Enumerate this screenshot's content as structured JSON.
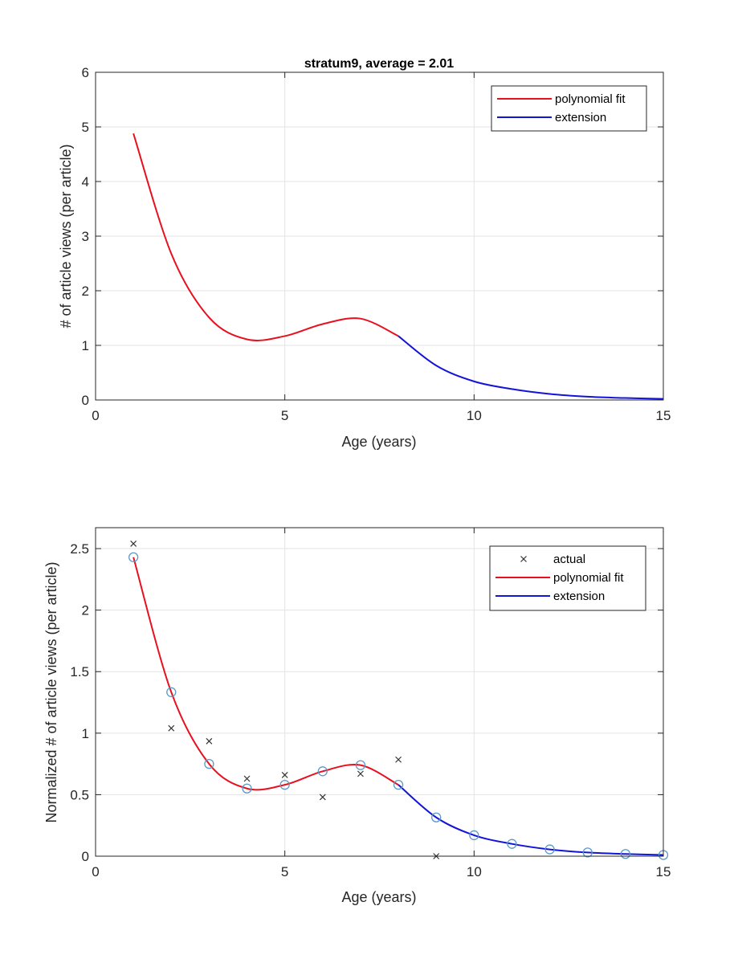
{
  "chart_data": [
    {
      "type": "line",
      "title": "stratum9,  average = 2.01",
      "xlabel": "Age (years)",
      "ylabel": "#  of article views (per article)",
      "xlim": [
        0,
        15
      ],
      "ylim": [
        0,
        6
      ],
      "xticks": [
        "0",
        "5",
        "10",
        "15"
      ],
      "xtick_values": [
        0,
        5,
        10,
        15
      ],
      "yticks": [
        "0",
        "1",
        "2",
        "3",
        "4",
        "5",
        "6"
      ],
      "ytick_values": [
        0,
        1,
        2,
        3,
        4,
        5,
        6
      ],
      "grid": true,
      "legend_position": "top-right",
      "legend": [
        "polynomial fit",
        "extension"
      ],
      "series": [
        {
          "name": "polynomial fit",
          "color": "#e8101e",
          "x": [
            1,
            2,
            3,
            4,
            5,
            6,
            7,
            8
          ],
          "y": [
            4.88,
            2.68,
            1.51,
            1.11,
            1.17,
            1.39,
            1.49,
            1.17
          ]
        },
        {
          "name": "extension",
          "color": "#1414d8",
          "x": [
            8,
            9,
            10,
            11,
            12,
            13,
            14,
            15
          ],
          "y": [
            1.17,
            0.63,
            0.34,
            0.2,
            0.11,
            0.06,
            0.036,
            0.02
          ]
        }
      ]
    },
    {
      "type": "line",
      "title": "",
      "xlabel": "Age (years)",
      "ylabel": "Normalized  #  of article views (per article)",
      "xlim": [
        0,
        15
      ],
      "ylim": [
        0,
        2.67
      ],
      "xticks": [
        "0",
        "5",
        "10",
        "15"
      ],
      "xtick_values": [
        0,
        5,
        10,
        15
      ],
      "yticks": [
        "0",
        "0.5",
        "1",
        "1.5",
        "2",
        "2.5"
      ],
      "ytick_values": [
        0,
        0.5,
        1,
        1.5,
        2,
        2.5
      ],
      "grid": true,
      "legend_position": "top-right",
      "legend": [
        "actual",
        "polynomial fit",
        "extension"
      ],
      "series": [
        {
          "name": "actual",
          "marker": "x",
          "color": "#333333",
          "x": [
            1,
            2,
            3,
            4,
            5,
            6,
            7,
            8,
            9
          ],
          "y": [
            2.54,
            1.04,
            0.935,
            0.63,
            0.66,
            0.48,
            0.67,
            0.785,
            0.0
          ]
        },
        {
          "name": "fit points",
          "marker": "o",
          "color": "#5a9ac8",
          "x": [
            1,
            2,
            3,
            4,
            5,
            6,
            7,
            8,
            9,
            10,
            11,
            12,
            13,
            14,
            15
          ],
          "y": [
            2.43,
            1.333,
            0.75,
            0.55,
            0.58,
            0.69,
            0.74,
            0.58,
            0.315,
            0.17,
            0.1,
            0.055,
            0.03,
            0.018,
            0.01
          ]
        },
        {
          "name": "polynomial fit",
          "color": "#e8101e",
          "x": [
            1,
            2,
            3,
            4,
            5,
            6,
            7,
            8
          ],
          "y": [
            2.43,
            1.333,
            0.75,
            0.55,
            0.58,
            0.69,
            0.74,
            0.58
          ]
        },
        {
          "name": "extension",
          "color": "#1414d8",
          "x": [
            8,
            9,
            10,
            11,
            12,
            13,
            14,
            15
          ],
          "y": [
            0.58,
            0.315,
            0.17,
            0.1,
            0.055,
            0.03,
            0.018,
            0.01
          ]
        }
      ]
    }
  ]
}
